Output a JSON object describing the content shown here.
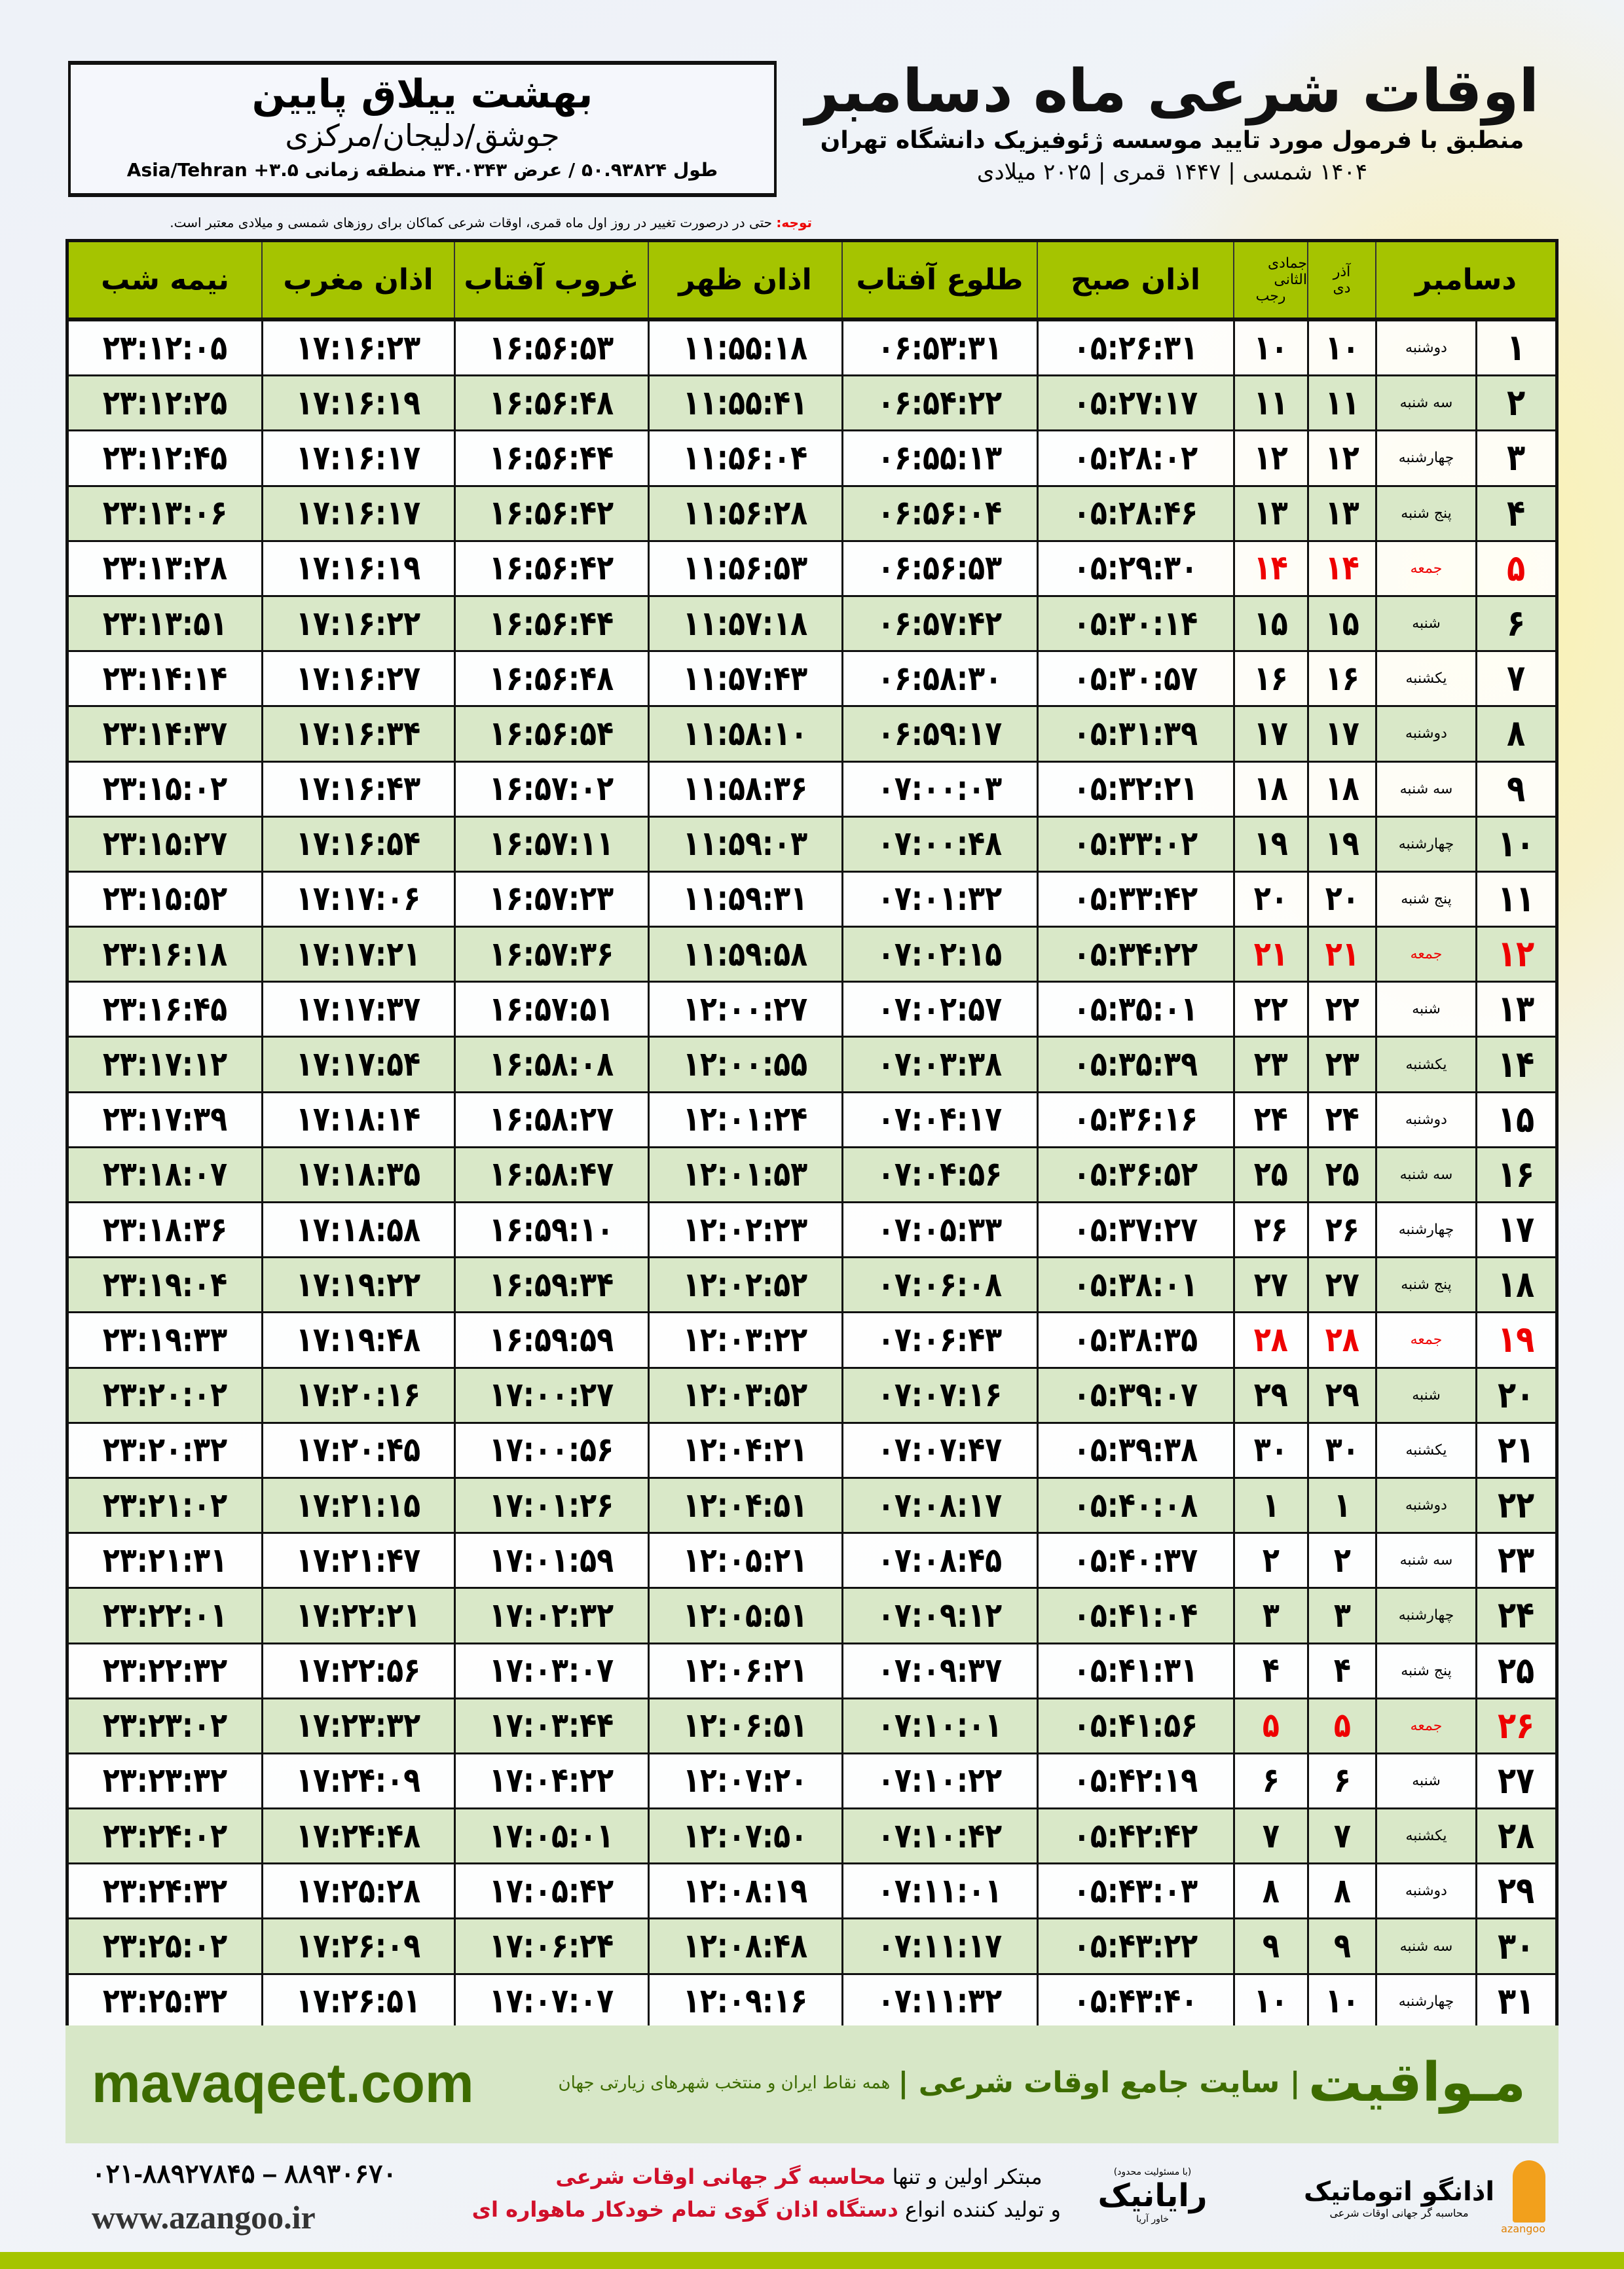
{
  "location": {
    "name": "بهشت ییلاق پایین",
    "region": "جوشق/دلیجان/مرکزی",
    "coords": "طول ۵۰.۹۳۸۲۴ / عرض ۳۴.۰۳۴۳ منطقه زمانی Asia/Tehran +۳.۵"
  },
  "header": {
    "title": "اوقات شرعی ماه دسامبر",
    "subtitle": "منطبق با فرمول مورد تایید موسسه ژئوفیزیک دانشگاه تهران",
    "years": "۱۴۰۴ شمسی | ۱۴۴۷ قمری | ۲۰۲۵ میلادی"
  },
  "note": {
    "label": "توجه:",
    "text": " حتی در درصورت تغییر در روز اول ماه قمری، اوقات شرعی کماکان برای روزهای شمسی و میلادی معتبر است."
  },
  "columns": {
    "month": "دسامبر",
    "shamsi_top": "آذر",
    "shamsi": "دی",
    "hijri_top": "جمادی الثانی",
    "hijri": "رجب",
    "fajr": "اذان صبح",
    "sunrise": "طلوع آفتاب",
    "dhuhr": "اذان ظهر",
    "sunset": "غروب آفتاب",
    "maghrib": "اذان مغرب",
    "midnight": "نیمه شب"
  },
  "colors": {
    "header_green": "#a5c400",
    "row_green": "#d9e8c8",
    "friday_red": "#e00000",
    "brand_green": "#3d6b00"
  },
  "rows": [
    [
      "۱",
      "دوشنبه",
      "۱۰",
      "۱۰",
      "۰۵:۲۶:۳۱",
      "۰۶:۵۳:۳۱",
      "۱۱:۵۵:۱۸",
      "۱۶:۵۶:۵۳",
      "۱۷:۱۶:۲۳",
      "۲۳:۱۲:۰۵"
    ],
    [
      "۲",
      "سه شنبه",
      "۱۱",
      "۱۱",
      "۰۵:۲۷:۱۷",
      "۰۶:۵۴:۲۲",
      "۱۱:۵۵:۴۱",
      "۱۶:۵۶:۴۸",
      "۱۷:۱۶:۱۹",
      "۲۳:۱۲:۲۵"
    ],
    [
      "۳",
      "چهارشنبه",
      "۱۲",
      "۱۲",
      "۰۵:۲۸:۰۲",
      "۰۶:۵۵:۱۳",
      "۱۱:۵۶:۰۴",
      "۱۶:۵۶:۴۴",
      "۱۷:۱۶:۱۷",
      "۲۳:۱۲:۴۵"
    ],
    [
      "۴",
      "پنج شنبه",
      "۱۳",
      "۱۳",
      "۰۵:۲۸:۴۶",
      "۰۶:۵۶:۰۴",
      "۱۱:۵۶:۲۸",
      "۱۶:۵۶:۴۲",
      "۱۷:۱۶:۱۷",
      "۲۳:۱۳:۰۶"
    ],
    [
      "۵",
      "جمعه",
      "۱۴",
      "۱۴",
      "۰۵:۲۹:۳۰",
      "۰۶:۵۶:۵۳",
      "۱۱:۵۶:۵۳",
      "۱۶:۵۶:۴۲",
      "۱۷:۱۶:۱۹",
      "۲۳:۱۳:۲۸"
    ],
    [
      "۶",
      "شنبه",
      "۱۵",
      "۱۵",
      "۰۵:۳۰:۱۴",
      "۰۶:۵۷:۴۲",
      "۱۱:۵۷:۱۸",
      "۱۶:۵۶:۴۴",
      "۱۷:۱۶:۲۲",
      "۲۳:۱۳:۵۱"
    ],
    [
      "۷",
      "یکشنبه",
      "۱۶",
      "۱۶",
      "۰۵:۳۰:۵۷",
      "۰۶:۵۸:۳۰",
      "۱۱:۵۷:۴۳",
      "۱۶:۵۶:۴۸",
      "۱۷:۱۶:۲۷",
      "۲۳:۱۴:۱۴"
    ],
    [
      "۸",
      "دوشنبه",
      "۱۷",
      "۱۷",
      "۰۵:۳۱:۳۹",
      "۰۶:۵۹:۱۷",
      "۱۱:۵۸:۱۰",
      "۱۶:۵۶:۵۴",
      "۱۷:۱۶:۳۴",
      "۲۳:۱۴:۳۷"
    ],
    [
      "۹",
      "سه شنبه",
      "۱۸",
      "۱۸",
      "۰۵:۳۲:۲۱",
      "۰۷:۰۰:۰۳",
      "۱۱:۵۸:۳۶",
      "۱۶:۵۷:۰۲",
      "۱۷:۱۶:۴۳",
      "۲۳:۱۵:۰۲"
    ],
    [
      "۱۰",
      "چهارشنبه",
      "۱۹",
      "۱۹",
      "۰۵:۳۳:۰۲",
      "۰۷:۰۰:۴۸",
      "۱۱:۵۹:۰۳",
      "۱۶:۵۷:۱۱",
      "۱۷:۱۶:۵۴",
      "۲۳:۱۵:۲۷"
    ],
    [
      "۱۱",
      "پنج شنبه",
      "۲۰",
      "۲۰",
      "۰۵:۳۳:۴۲",
      "۰۷:۰۱:۳۲",
      "۱۱:۵۹:۳۱",
      "۱۶:۵۷:۲۳",
      "۱۷:۱۷:۰۶",
      "۲۳:۱۵:۵۲"
    ],
    [
      "۱۲",
      "جمعه",
      "۲۱",
      "۲۱",
      "۰۵:۳۴:۲۲",
      "۰۷:۰۲:۱۵",
      "۱۱:۵۹:۵۸",
      "۱۶:۵۷:۳۶",
      "۱۷:۱۷:۲۱",
      "۲۳:۱۶:۱۸"
    ],
    [
      "۱۳",
      "شنبه",
      "۲۲",
      "۲۲",
      "۰۵:۳۵:۰۱",
      "۰۷:۰۲:۵۷",
      "۱۲:۰۰:۲۷",
      "۱۶:۵۷:۵۱",
      "۱۷:۱۷:۳۷",
      "۲۳:۱۶:۴۵"
    ],
    [
      "۱۴",
      "یکشنبه",
      "۲۳",
      "۲۳",
      "۰۵:۳۵:۳۹",
      "۰۷:۰۳:۳۸",
      "۱۲:۰۰:۵۵",
      "۱۶:۵۸:۰۸",
      "۱۷:۱۷:۵۴",
      "۲۳:۱۷:۱۲"
    ],
    [
      "۱۵",
      "دوشنبه",
      "۲۴",
      "۲۴",
      "۰۵:۳۶:۱۶",
      "۰۷:۰۴:۱۷",
      "۱۲:۰۱:۲۴",
      "۱۶:۵۸:۲۷",
      "۱۷:۱۸:۱۴",
      "۲۳:۱۷:۳۹"
    ],
    [
      "۱۶",
      "سه شنبه",
      "۲۵",
      "۲۵",
      "۰۵:۳۶:۵۲",
      "۰۷:۰۴:۵۶",
      "۱۲:۰۱:۵۳",
      "۱۶:۵۸:۴۷",
      "۱۷:۱۸:۳۵",
      "۲۳:۱۸:۰۷"
    ],
    [
      "۱۷",
      "چهارشنبه",
      "۲۶",
      "۲۶",
      "۰۵:۳۷:۲۷",
      "۰۷:۰۵:۳۳",
      "۱۲:۰۲:۲۳",
      "۱۶:۵۹:۱۰",
      "۱۷:۱۸:۵۸",
      "۲۳:۱۸:۳۶"
    ],
    [
      "۱۸",
      "پنج شنبه",
      "۲۷",
      "۲۷",
      "۰۵:۳۸:۰۱",
      "۰۷:۰۶:۰۸",
      "۱۲:۰۲:۵۲",
      "۱۶:۵۹:۳۴",
      "۱۷:۱۹:۲۲",
      "۲۳:۱۹:۰۴"
    ],
    [
      "۱۹",
      "جمعه",
      "۲۸",
      "۲۸",
      "۰۵:۳۸:۳۵",
      "۰۷:۰۶:۴۳",
      "۱۲:۰۳:۲۲",
      "۱۶:۵۹:۵۹",
      "۱۷:۱۹:۴۸",
      "۲۳:۱۹:۳۳"
    ],
    [
      "۲۰",
      "شنبه",
      "۲۹",
      "۲۹",
      "۰۵:۳۹:۰۷",
      "۰۷:۰۷:۱۶",
      "۱۲:۰۳:۵۲",
      "۱۷:۰۰:۲۷",
      "۱۷:۲۰:۱۶",
      "۲۳:۲۰:۰۲"
    ],
    [
      "۲۱",
      "یکشنبه",
      "۳۰",
      "۳۰",
      "۰۵:۳۹:۳۸",
      "۰۷:۰۷:۴۷",
      "۱۲:۰۴:۲۱",
      "۱۷:۰۰:۵۶",
      "۱۷:۲۰:۴۵",
      "۲۳:۲۰:۳۲"
    ],
    [
      "۲۲",
      "دوشنبه",
      "۱",
      "۱",
      "۰۵:۴۰:۰۸",
      "۰۷:۰۸:۱۷",
      "۱۲:۰۴:۵۱",
      "۱۷:۰۱:۲۶",
      "۱۷:۲۱:۱۵",
      "۲۳:۲۱:۰۲"
    ],
    [
      "۲۳",
      "سه شنبه",
      "۲",
      "۲",
      "۰۵:۴۰:۳۷",
      "۰۷:۰۸:۴۵",
      "۱۲:۰۵:۲۱",
      "۱۷:۰۱:۵۹",
      "۱۷:۲۱:۴۷",
      "۲۳:۲۱:۳۱"
    ],
    [
      "۲۴",
      "چهارشنبه",
      "۳",
      "۳",
      "۰۵:۴۱:۰۴",
      "۰۷:۰۹:۱۲",
      "۱۲:۰۵:۵۱",
      "۱۷:۰۲:۳۲",
      "۱۷:۲۲:۲۱",
      "۲۳:۲۲:۰۱"
    ],
    [
      "۲۵",
      "پنج شنبه",
      "۴",
      "۴",
      "۰۵:۴۱:۳۱",
      "۰۷:۰۹:۳۷",
      "۱۲:۰۶:۲۱",
      "۱۷:۰۳:۰۷",
      "۱۷:۲۲:۵۶",
      "۲۳:۲۲:۳۲"
    ],
    [
      "۲۶",
      "جمعه",
      "۵",
      "۵",
      "۰۵:۴۱:۵۶",
      "۰۷:۱۰:۰۱",
      "۱۲:۰۶:۵۱",
      "۱۷:۰۳:۴۴",
      "۱۷:۲۳:۳۲",
      "۲۳:۲۳:۰۲"
    ],
    [
      "۲۷",
      "شنبه",
      "۶",
      "۶",
      "۰۵:۴۲:۱۹",
      "۰۷:۱۰:۲۲",
      "۱۲:۰۷:۲۰",
      "۱۷:۰۴:۲۲",
      "۱۷:۲۴:۰۹",
      "۲۳:۲۳:۳۲"
    ],
    [
      "۲۸",
      "یکشنبه",
      "۷",
      "۷",
      "۰۵:۴۲:۴۲",
      "۰۷:۱۰:۴۲",
      "۱۲:۰۷:۵۰",
      "۱۷:۰۵:۰۱",
      "۱۷:۲۴:۴۸",
      "۲۳:۲۴:۰۲"
    ],
    [
      "۲۹",
      "دوشنبه",
      "۸",
      "۸",
      "۰۵:۴۳:۰۳",
      "۰۷:۱۱:۰۱",
      "۱۲:۰۸:۱۹",
      "۱۷:۰۵:۴۲",
      "۱۷:۲۵:۲۸",
      "۲۳:۲۴:۳۲"
    ],
    [
      "۳۰",
      "سه شنبه",
      "۹",
      "۹",
      "۰۵:۴۳:۲۲",
      "۰۷:۱۱:۱۷",
      "۱۲:۰۸:۴۸",
      "۱۷:۰۶:۲۴",
      "۱۷:۲۶:۰۹",
      "۲۳:۲۵:۰۲"
    ],
    [
      "۳۱",
      "چهارشنبه",
      "۱۰",
      "۱۰",
      "۰۵:۴۳:۴۰",
      "۰۷:۱۱:۳۲",
      "۱۲:۰۹:۱۶",
      "۱۷:۰۷:۰۷",
      "۱۷:۲۶:۵۱",
      "۲۳:۲۵:۳۲"
    ]
  ],
  "footer": {
    "mavaqeet_url": "mavaqeet.com",
    "mavaqeet_brand": "مـواقیت",
    "mavaqeet_tagline": "| سایت جامع اوقات شرعی |",
    "mavaqeet_sub": "همه نقاط ایران و منتخب شهرهای زیارتی جهان",
    "phone": "۰۲۱-۸۸۹۲۷۸۴۵ – ۸۸۹۳۰۶۷۰",
    "website": "www.azangoo.ir",
    "ad_line1_a": "مبتکر اولین و تنها ",
    "ad_line1_b": "محاسبه گر جهانی اوقات شرعی",
    "ad_line2_a": "و تولید کننده انواع ",
    "ad_line2_b": "دستگاه اذان گوی تمام خودکار ماهواره ای",
    "rayanik_note": "(با مسئولیت محدود)",
    "rayanik_name": "رایانیک",
    "rayanik_sub": "خاور آریا",
    "azangoo_name": "اذانگو اتوماتیک",
    "azangoo_sub": "محاسبه گر جهانی اوقات شرعی",
    "azangoo_latin": "azangoo"
  }
}
